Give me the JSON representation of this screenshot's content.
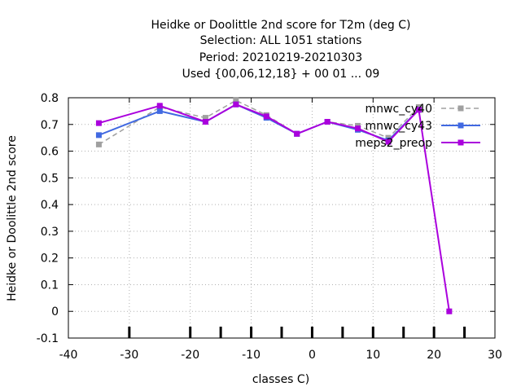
{
  "chart_data": {
    "type": "line",
    "title_lines": [
      "Heidke or Doolittle 2nd score  for T2m (deg C)",
      "Selection: ALL    1051 stations",
      "Period: 20210219-20210303",
      "Used {00,06,12,18} + 00 01 ... 09"
    ],
    "xlabel": "classes C)",
    "ylabel": "Heidke or Doolittle 2nd score",
    "xlim": [
      -40,
      30
    ],
    "ylim": [
      -0.1,
      0.8
    ],
    "x_ticks": [
      -40,
      -30,
      -20,
      -10,
      0,
      10,
      20,
      30
    ],
    "x_tick_labels": [
      "-40",
      "-30",
      "-20",
      "-10",
      "0",
      "10",
      "20",
      "30"
    ],
    "y_ticks": [
      -0.1,
      0,
      0.1,
      0.2,
      0.3,
      0.4,
      0.5,
      0.6,
      0.7,
      0.8
    ],
    "y_tick_labels": [
      "-0.1",
      "0",
      "0.1",
      "0.2",
      "0.3",
      "0.4",
      "0.5",
      "0.6",
      "0.7",
      "0.8"
    ],
    "class_boundaries": [
      -30,
      -20,
      -15,
      -10,
      -5,
      0,
      5,
      10,
      15,
      20,
      25
    ],
    "grid": true,
    "legend_position": "top-right",
    "series": [
      {
        "name": "mnwc_cy40",
        "color": "#a0a0a0",
        "dashed": true,
        "points": [
          [
            -35,
            0.625
          ],
          [
            -25,
            0.765
          ],
          [
            -17.5,
            0.725
          ],
          [
            -12.5,
            0.79
          ],
          [
            -7.5,
            0.735
          ],
          [
            -2.5,
            0.665
          ],
          [
            2.5,
            0.71
          ],
          [
            7.5,
            0.695
          ],
          [
            12.5,
            0.65
          ],
          [
            17.5,
            0.765
          ]
        ]
      },
      {
        "name": "mnwc_cy43",
        "color": "#4169e1",
        "dashed": false,
        "points": [
          [
            -35,
            0.66
          ],
          [
            -25,
            0.75
          ],
          [
            -17.5,
            0.71
          ],
          [
            -12.5,
            0.775
          ],
          [
            -7.5,
            0.725
          ],
          [
            -2.5,
            0.665
          ],
          [
            2.5,
            0.71
          ],
          [
            7.5,
            0.68
          ],
          [
            12.5,
            0.64
          ],
          [
            17.5,
            0.755
          ]
        ]
      },
      {
        "name": "meps2_preop",
        "color": "#aa00dd",
        "dashed": false,
        "points": [
          [
            -35,
            0.705
          ],
          [
            -25,
            0.77
          ],
          [
            -17.5,
            0.71
          ],
          [
            -12.5,
            0.775
          ],
          [
            -7.5,
            0.73
          ],
          [
            -2.5,
            0.665
          ],
          [
            2.5,
            0.71
          ],
          [
            7.5,
            0.685
          ],
          [
            12.5,
            0.635
          ],
          [
            17.5,
            0.755
          ],
          [
            22.5,
            0.0
          ]
        ]
      }
    ]
  }
}
